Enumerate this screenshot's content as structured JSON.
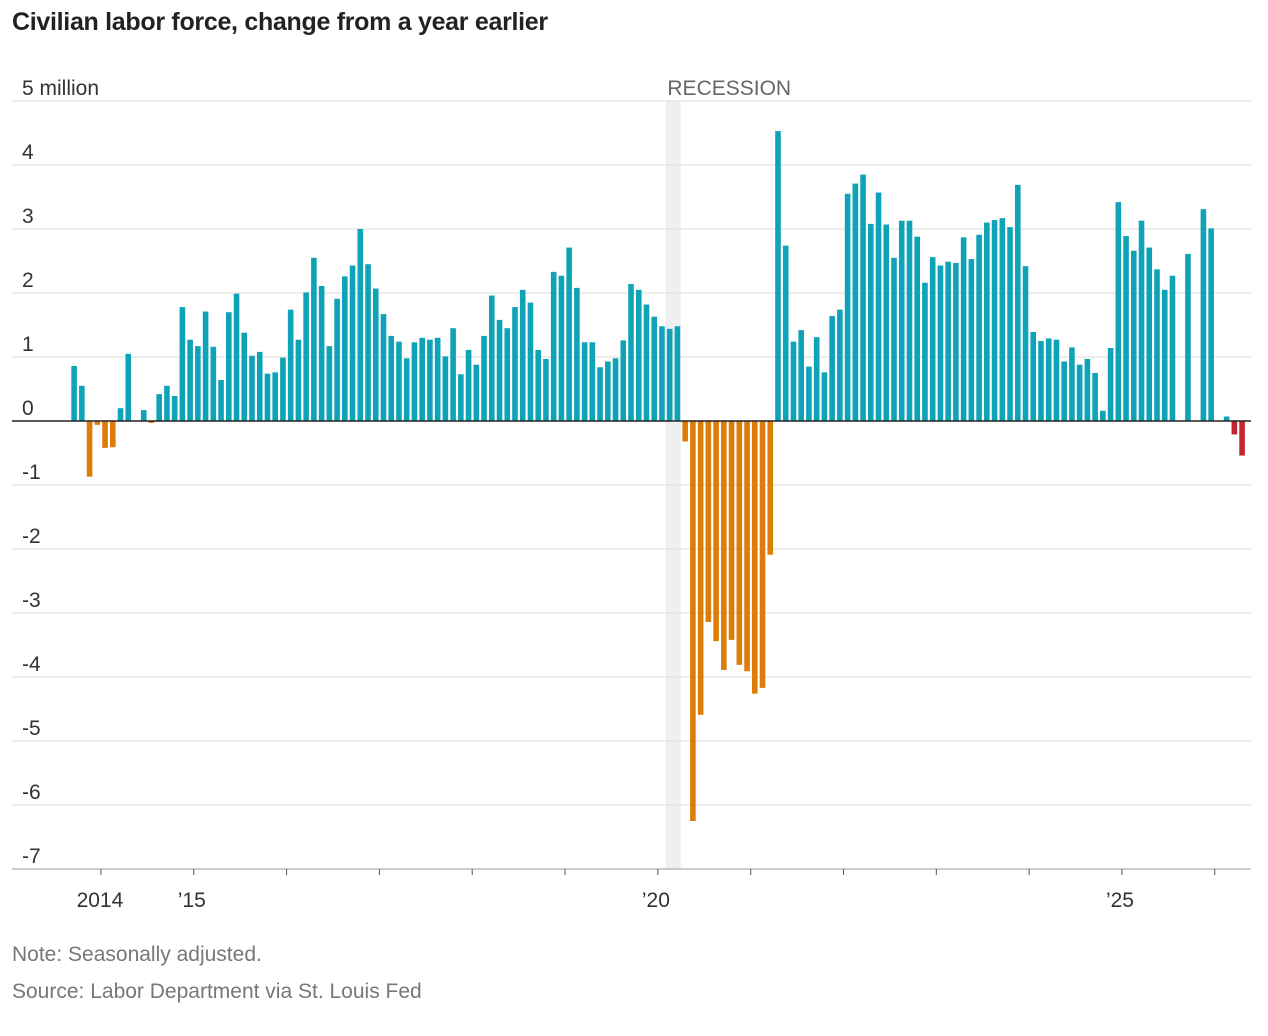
{
  "chart_data": {
    "type": "bar",
    "title": "Civilian labor force, change from a year earlier",
    "unit_label": "5 million",
    "ylim": [
      -7,
      5
    ],
    "y_ticks": [
      5,
      4,
      3,
      2,
      1,
      0,
      -1,
      -2,
      -3,
      -4,
      -5,
      -6,
      -7
    ],
    "y_tick_labels": [
      "5 million",
      "4",
      "3",
      "2",
      "1",
      "0",
      "-1",
      "-2",
      "-3",
      "-4",
      "-5",
      "-6",
      "-7"
    ],
    "x_start": {
      "year": 2013,
      "month": 9
    },
    "x_tick_labels": [
      {
        "label": "2014",
        "year": 2014
      },
      {
        "label": "’15",
        "year": 2015
      },
      {
        "label": "’20",
        "year": 2020
      },
      {
        "label": "’25",
        "year": 2025
      }
    ],
    "x_tick_years": [
      2014,
      2015,
      2016,
      2017,
      2018,
      2019,
      2020,
      2021,
      2022,
      2023,
      2024,
      2025,
      2026
    ],
    "recession": {
      "label": "RECESSION",
      "start": {
        "year": 2020,
        "month": 2
      },
      "end": {
        "year": 2020,
        "month": 4
      }
    },
    "colors": {
      "positive": "#0fa3b8",
      "negative": "#de7c08",
      "latest_negative": "#c1272d",
      "recession": "#efeff2",
      "grid": "#dddddd",
      "axis": "#222222"
    },
    "values": [
      0.86,
      0.55,
      -0.87,
      -0.06,
      -0.42,
      -0.41,
      0.2,
      1.05,
      0.0,
      0.17,
      -0.03,
      0.42,
      0.55,
      0.39,
      1.78,
      1.27,
      1.17,
      1.71,
      1.16,
      0.64,
      1.7,
      1.99,
      1.38,
      1.02,
      1.08,
      0.74,
      0.76,
      0.99,
      1.74,
      1.27,
      2.01,
      2.55,
      2.11,
      1.17,
      1.91,
      2.26,
      2.43,
      3.0,
      2.45,
      2.07,
      1.67,
      1.33,
      1.24,
      0.98,
      1.23,
      1.3,
      1.27,
      1.3,
      1.01,
      1.45,
      0.73,
      1.11,
      0.88,
      1.33,
      1.96,
      1.58,
      1.45,
      1.78,
      2.05,
      1.85,
      1.11,
      0.97,
      2.33,
      2.27,
      2.71,
      2.08,
      1.23,
      1.23,
      0.84,
      0.93,
      0.98,
      1.26,
      2.14,
      2.05,
      1.82,
      1.63,
      1.48,
      1.44,
      1.48,
      -0.32,
      -6.25,
      -4.59,
      -3.14,
      -3.44,
      -3.89,
      -3.42,
      -3.81,
      -3.91,
      -4.26,
      -4.17,
      -2.09,
      4.53,
      2.74,
      1.24,
      1.42,
      0.85,
      1.31,
      0.76,
      1.64,
      1.74,
      3.55,
      3.71,
      3.85,
      3.08,
      3.57,
      3.07,
      2.55,
      3.13,
      3.13,
      2.88,
      2.16,
      2.56,
      2.43,
      2.49,
      2.47,
      2.87,
      2.53,
      2.91,
      3.1,
      3.14,
      3.17,
      3.03,
      3.69,
      2.42,
      1.39,
      1.25,
      1.29,
      1.27,
      0.93,
      1.15,
      0.88,
      0.97,
      0.75,
      0.16,
      1.14,
      3.42,
      2.89,
      2.66,
      3.13,
      2.71,
      2.37,
      2.05,
      2.27,
      0.0,
      2.61,
      0.0,
      3.31,
      3.01,
      0.0,
      0.07,
      -0.21,
      -0.54
    ]
  },
  "notes": {
    "note": "Note: Seasonally adjusted.",
    "source": "Source: Labor Department via St. Louis Fed"
  }
}
